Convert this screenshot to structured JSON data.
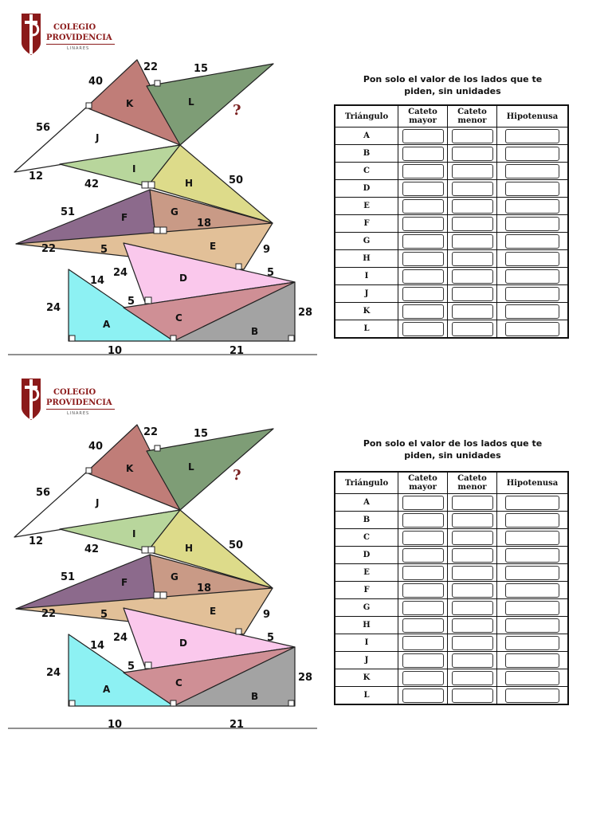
{
  "logo": {
    "line1": "COLEGIO",
    "line2": "PROVIDENCIA",
    "line3": "LINARES",
    "color": "#8b1a1a"
  },
  "figure": {
    "side_labels": [
      "22",
      "15",
      "40",
      "56",
      "12",
      "42",
      "50",
      "51",
      "18",
      "22",
      "5",
      "9",
      "24",
      "5",
      "14",
      "24",
      "5",
      "28",
      "10",
      "21"
    ],
    "triangle_labels": [
      "K",
      "L",
      "J",
      "I",
      "H",
      "F",
      "G",
      "E",
      "D",
      "A",
      "C",
      "B"
    ],
    "question_mark": "?",
    "colors": {
      "K": "#c07d78",
      "L": "#7e9d76",
      "I": "#b8d69c",
      "H": "#dddb8a",
      "F": "#8c6a8c",
      "G": "#c99a86",
      "E": "#e2c098",
      "D": "#fac8ec",
      "A": "#8df1f3",
      "C": "#cf8f95",
      "B": "#a3a3a3"
    }
  },
  "instructions": {
    "line1": "Pon solo el valor de los lados que te",
    "line2": "piden, sin unidades"
  },
  "table": {
    "headers": {
      "triangle": "Triángulo",
      "cateto_mayor_1": "Cateto",
      "cateto_mayor_2": "mayor",
      "cateto_menor_1": "Cateto",
      "cateto_menor_2": "menor",
      "hipotenusa": "Hipotenusa"
    },
    "rows": [
      "A",
      "B",
      "C",
      "D",
      "E",
      "F",
      "G",
      "H",
      "I",
      "J",
      "K",
      "L"
    ]
  }
}
